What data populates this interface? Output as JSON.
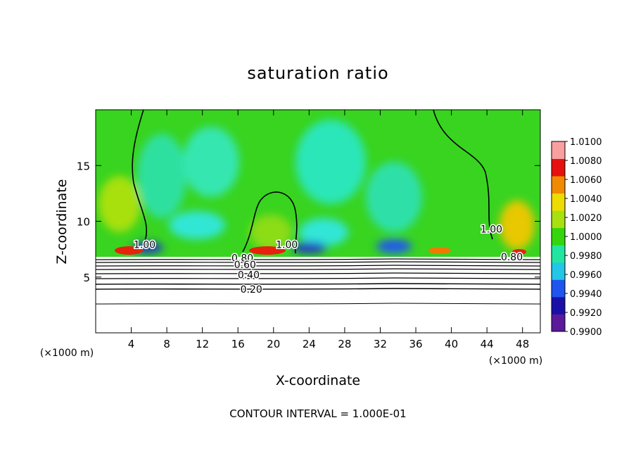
{
  "chart_data": {
    "type": "heatmap",
    "title": "saturation ratio",
    "xlabel": "X-coordinate",
    "ylabel": "Z-coordinate",
    "x_unit_left": "(×1000 m)",
    "x_unit_right": "(×1000 m)",
    "footer": "CONTOUR INTERVAL = 1.000E-01",
    "xlim": [
      0,
      50
    ],
    "ylim": [
      0,
      20
    ],
    "x_ticks": [
      4,
      8,
      12,
      16,
      20,
      24,
      28,
      32,
      36,
      40,
      44,
      48
    ],
    "y_ticks": [
      5,
      10,
      15
    ],
    "colorbar": {
      "ticks": [
        "0.9900",
        "0.9920",
        "0.9940",
        "0.9960",
        "0.9980",
        "1.0000",
        "1.0020",
        "1.0040",
        "1.0060",
        "1.0080",
        "1.0100"
      ],
      "colors": [
        "#5a1a9a",
        "#1a10a8",
        "#1f55ee",
        "#22c6e6",
        "#22e6a0",
        "#33d60c",
        "#a8e010",
        "#ecdc00",
        "#f08a00",
        "#e61010",
        "#f8a0a0"
      ]
    },
    "contour_labels": [
      {
        "text": "1.00",
        "x": 5.5,
        "y": 7.6
      },
      {
        "text": "1.00",
        "x": 21.5,
        "y": 7.6
      },
      {
        "text": "1.00",
        "x": 44.5,
        "y": 9.0
      },
      {
        "text": "0.80",
        "x": 16.5,
        "y": 6.4
      },
      {
        "text": "0.60",
        "x": 16.8,
        "y": 5.8
      },
      {
        "text": "0.40",
        "x": 17.2,
        "y": 4.9
      },
      {
        "text": "0.20",
        "x": 17.5,
        "y": 3.6
      },
      {
        "text": "0.80",
        "x": 46.8,
        "y": 6.5
      }
    ],
    "series": [
      {
        "name": "",
        "values": [
          [
            0,
            6.7
          ],
          [
            10,
            6.6
          ],
          [
            20,
            6.6
          ],
          [
            30,
            6.5
          ],
          [
            40,
            6.6
          ],
          [
            50,
            6.5
          ]
        ]
      }
    ]
  }
}
